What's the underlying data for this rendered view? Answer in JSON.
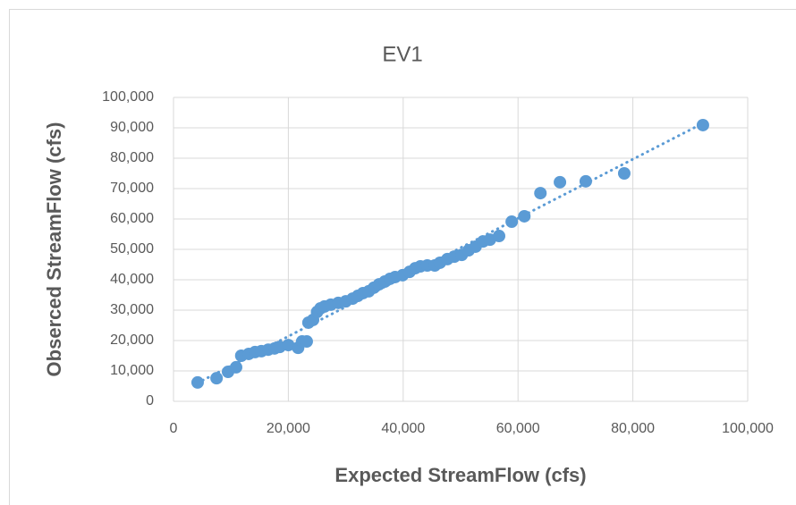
{
  "chart_data": {
    "type": "scatter",
    "title": "EV1",
    "x_label": "Expected StreamFlow (cfs)",
    "y_label": "Obserced StreamFlow (cfs)",
    "color": "#5b9bd5",
    "trendline": "linear",
    "grid": true,
    "xlim": [
      0,
      100000
    ],
    "ylim": [
      0,
      100000
    ],
    "xticks": [
      0,
      {
        "value": 20000,
        "label": "20,000"
      },
      {
        "value": 40000,
        "label": "40,000"
      },
      {
        "value": 60000,
        "label": "60,000"
      },
      {
        "value": 80000,
        "label": "80,000"
      },
      {
        "value": 100000,
        "label": "100,000"
      }
    ],
    "yticks": [
      0,
      {
        "value": 10000,
        "label": "10,000"
      },
      {
        "value": 20000,
        "label": "20,000"
      },
      {
        "value": 30000,
        "label": "30,000"
      },
      {
        "value": 40000,
        "label": "40,000"
      },
      {
        "value": 50000,
        "label": "50,000"
      },
      {
        "value": 60000,
        "label": "60,000"
      },
      {
        "value": 70000,
        "label": "70,000"
      },
      {
        "value": 80000,
        "label": "80,000"
      },
      {
        "value": 90000,
        "label": "90,000"
      },
      {
        "value": {
          "value": 100000,
          "label": "100,000"
        }
      }
    ],
    "x": [
      4200,
      7500,
      9500,
      10900,
      11800,
      13100,
      14200,
      15300,
      16500,
      17600,
      18500,
      20000,
      21700,
      22400,
      23200,
      23500,
      24300,
      25000,
      25600,
      26300,
      27400,
      28700,
      30000,
      31200,
      32100,
      33000,
      34000,
      34900,
      35800,
      36800,
      37700,
      38600,
      39900,
      41100,
      42100,
      43000,
      44200,
      45500,
      46400,
      47700,
      48900,
      50200,
      51400,
      52600,
      53900,
      55100,
      56700,
      58900,
      61100,
      63900,
      67300,
      71800,
      78500,
      92200
    ],
    "y": [
      6200,
      7600,
      9700,
      11200,
      15000,
      15600,
      16200,
      16500,
      17000,
      17400,
      17900,
      18500,
      17600,
      19700,
      19700,
      25900,
      26800,
      29400,
      30600,
      31200,
      31800,
      32400,
      32900,
      33800,
      34700,
      35600,
      36200,
      37400,
      38500,
      39400,
      40300,
      40900,
      41500,
      42600,
      43800,
      44400,
      44700,
      44700,
      45600,
      46800,
      47600,
      48200,
      49700,
      50900,
      52600,
      53200,
      54400,
      59100,
      60900,
      68500,
      72100,
      72400,
      75000,
      90900
    ]
  }
}
